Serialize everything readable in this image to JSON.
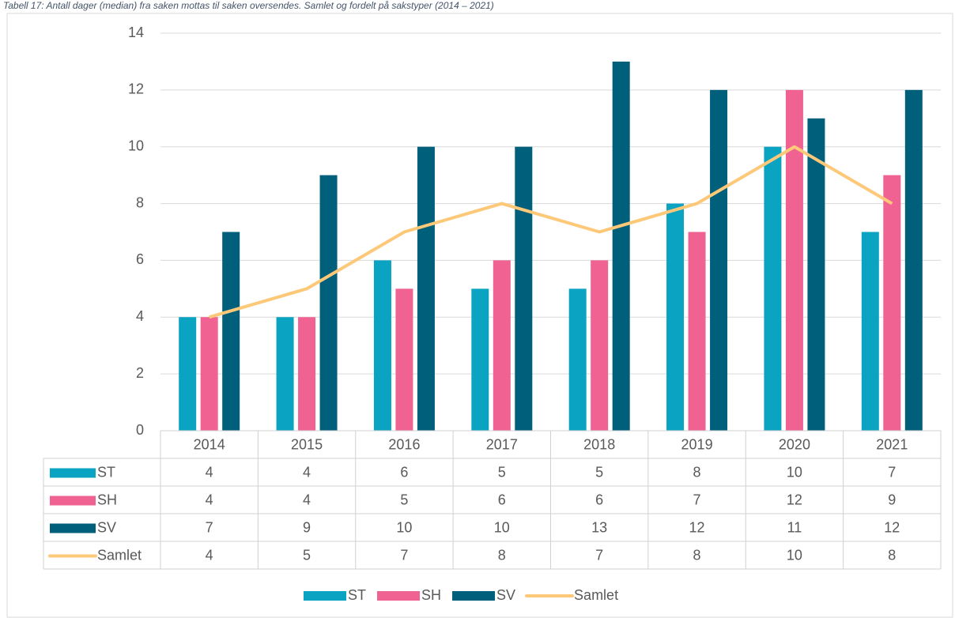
{
  "chart_data": {
    "type": "bar",
    "title": "Tabell 17: Antall dager (median) fra saken mottas til saken oversendes. Samlet og fordelt på sakstyper (2014 – 2021)",
    "categories": [
      "2014",
      "2015",
      "2016",
      "2017",
      "2018",
      "2019",
      "2020",
      "2021"
    ],
    "series": [
      {
        "name": "ST",
        "type": "bar",
        "color": "#0aa3c2",
        "values": [
          4,
          4,
          6,
          5,
          5,
          8,
          10,
          7
        ]
      },
      {
        "name": "SH",
        "type": "bar",
        "color": "#f06292",
        "values": [
          4,
          4,
          5,
          6,
          6,
          7,
          12,
          9
        ]
      },
      {
        "name": "SV",
        "type": "bar",
        "color": "#005f7b",
        "values": [
          7,
          9,
          10,
          10,
          13,
          12,
          11,
          12
        ]
      },
      {
        "name": "Samlet",
        "type": "line",
        "color": "#fdc878",
        "values": [
          4,
          5,
          7,
          8,
          7,
          8,
          10,
          8
        ]
      }
    ],
    "ylim": [
      0,
      14
    ],
    "yticks": [
      0,
      2,
      4,
      6,
      8,
      10,
      12,
      14
    ],
    "grid": true,
    "legend": "bottom",
    "data_table": true
  }
}
